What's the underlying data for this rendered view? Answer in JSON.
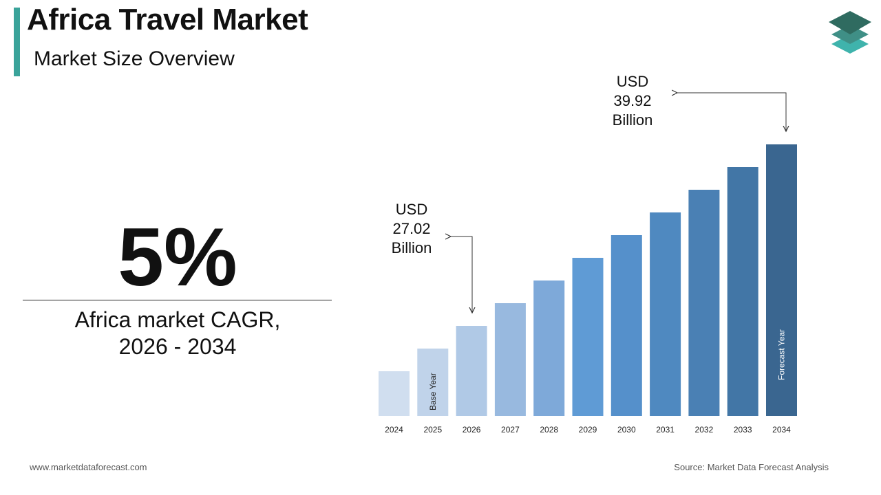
{
  "header": {
    "title": "Africa Travel Market",
    "subtitle": "Market Size Overview"
  },
  "brand_colors": {
    "accent": "#3aa39a",
    "logo": [
      "#2f6b60",
      "#3f8f86",
      "#3fb3ac"
    ]
  },
  "kpi": {
    "value": "5%",
    "label_line1": "Africa market CAGR,",
    "label_line2": "2026 - 2034"
  },
  "annotations": [
    {
      "line1": "USD",
      "line2": "27.02",
      "line3": "Billion",
      "year": "2026"
    },
    {
      "line1": "USD",
      "line2": "39.92",
      "line3": "Billion",
      "year": "2034"
    }
  ],
  "chart_data": {
    "type": "bar",
    "title": "",
    "xlabel": "",
    "ylabel": "",
    "categories": [
      "2024",
      "2025",
      "2026",
      "2027",
      "2028",
      "2029",
      "2030",
      "2031",
      "2032",
      "2033",
      "2034"
    ],
    "values": [
      null,
      null,
      27.02,
      null,
      null,
      null,
      null,
      null,
      null,
      null,
      39.92
    ],
    "value_unit": "USD Billion",
    "bar_labels": {
      "2025": "Base Year",
      "2034": "Forecast Year"
    },
    "colors": [
      "#d0deef",
      "#c0d3ea",
      "#b0c9e6",
      "#98b9df",
      "#7ea9d9",
      "#5f9bd5",
      "#5590cb",
      "#4f89c0",
      "#4a80b4",
      "#4276a6",
      "#3a6690"
    ],
    "grid": false,
    "legend": "none"
  },
  "footer": {
    "left": "www.marketdataforecast.com",
    "right": "Source: Market Data Forecast Analysis"
  }
}
